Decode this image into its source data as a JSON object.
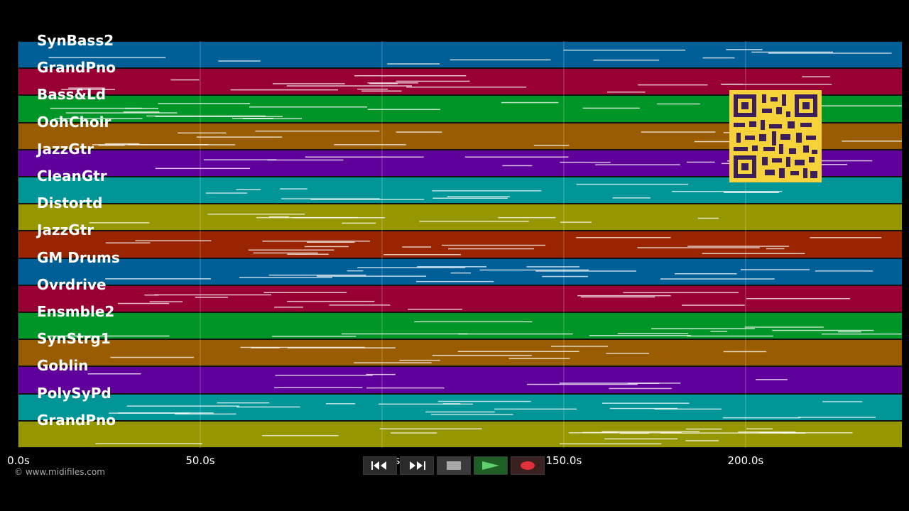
{
  "tracks": [
    {
      "name": "SynBass2",
      "color": "#005f96"
    },
    {
      "name": "GrandPno",
      "color": "#980034"
    },
    {
      "name": "Bass&Ld",
      "color": "#009527"
    },
    {
      "name": "OohChoir",
      "color": "#9a5c00"
    },
    {
      "name": "JazzGtr",
      "color": "#60009a"
    },
    {
      "name": "CleanGtr",
      "color": "#009596"
    },
    {
      "name": "Distortd",
      "color": "#969600"
    },
    {
      "name": "JazzGtr",
      "color": "#982400"
    },
    {
      "name": "GM Drums",
      "color": "#005f96"
    },
    {
      "name": "Ovrdrive",
      "color": "#980034"
    },
    {
      "name": "Ensmble2",
      "color": "#009527"
    },
    {
      "name": "SynStrg1",
      "color": "#9a5c00"
    },
    {
      "name": "Goblin",
      "color": "#60009a"
    },
    {
      "name": "PolySyPd",
      "color": "#009596"
    },
    {
      "name": "GrandPno",
      "color": "#969600"
    }
  ],
  "timeline": {
    "ticks": [
      "0.0s",
      "50.0s",
      "100.0s",
      "150.0s",
      "200.0s"
    ],
    "tick_seconds": [
      0,
      50,
      100,
      150,
      200
    ],
    "max_seconds": 243
  },
  "copyright": "© www.midifiles.com",
  "transport": {
    "rewind": "rewind-icon",
    "fast_forward": "fast-forward-icon",
    "stop": "stop-icon",
    "play": "play-icon",
    "record": "record-icon"
  }
}
